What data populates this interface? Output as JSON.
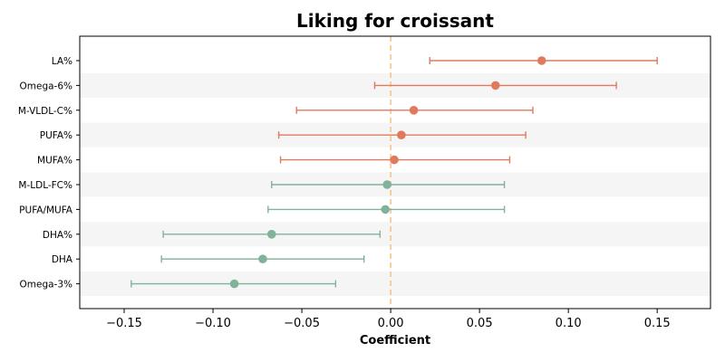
{
  "chart_data": {
    "type": "scatter",
    "subtype": "forest-plot",
    "title": "Liking for croissant",
    "xlabel": "Coefficient",
    "ylabel": "",
    "xlim": [
      -0.175,
      0.18
    ],
    "xticks": [
      -0.15,
      -0.1,
      -0.05,
      0.0,
      0.05,
      0.1,
      0.15
    ],
    "xtick_labels": [
      "−0.15",
      "−0.10",
      "−0.05",
      "0.00",
      "0.05",
      "0.10",
      "0.15"
    ],
    "reference_line": {
      "x": 0.0,
      "style": "dashed",
      "color": "#f5c48a"
    },
    "band_color": "#f5f5f5",
    "grid": false,
    "colors": {
      "positive": "#e07a5f",
      "negative": "#81b29a"
    },
    "rows": [
      {
        "label": "LA%",
        "estimate": 0.085,
        "ci_low": 0.022,
        "ci_high": 0.15,
        "group": "positive"
      },
      {
        "label": "Omega-6%",
        "estimate": 0.059,
        "ci_low": -0.009,
        "ci_high": 0.127,
        "group": "positive"
      },
      {
        "label": "M-VLDL-C%",
        "estimate": 0.013,
        "ci_low": -0.053,
        "ci_high": 0.08,
        "group": "positive"
      },
      {
        "label": "PUFA%",
        "estimate": 0.006,
        "ci_low": -0.063,
        "ci_high": 0.076,
        "group": "positive"
      },
      {
        "label": "MUFA%",
        "estimate": 0.002,
        "ci_low": -0.062,
        "ci_high": 0.067,
        "group": "positive"
      },
      {
        "label": "M-LDL-FC%",
        "estimate": -0.002,
        "ci_low": -0.067,
        "ci_high": 0.064,
        "group": "negative"
      },
      {
        "label": "PUFA/MUFA",
        "estimate": -0.003,
        "ci_low": -0.069,
        "ci_high": 0.064,
        "group": "negative"
      },
      {
        "label": "DHA%",
        "estimate": -0.067,
        "ci_low": -0.128,
        "ci_high": -0.006,
        "group": "negative"
      },
      {
        "label": "DHA",
        "estimate": -0.072,
        "ci_low": -0.129,
        "ci_high": -0.015,
        "group": "negative"
      },
      {
        "label": "Omega-3%",
        "estimate": -0.088,
        "ci_low": -0.146,
        "ci_high": -0.031,
        "group": "negative"
      }
    ]
  }
}
